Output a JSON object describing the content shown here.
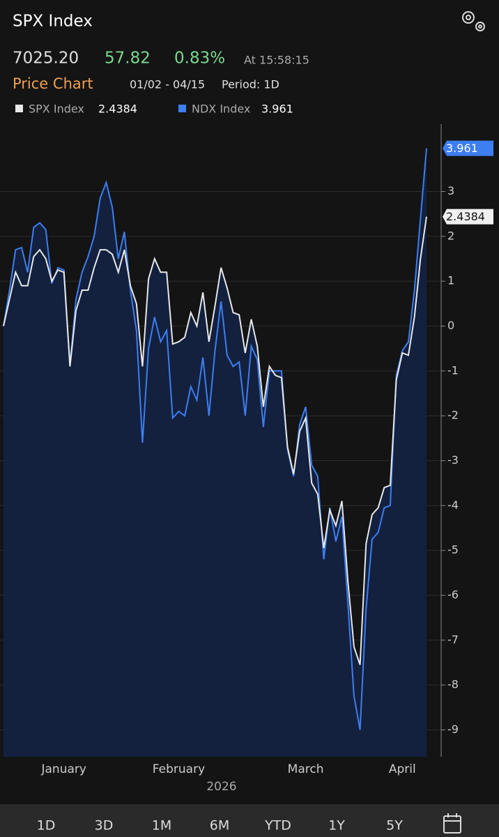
{
  "header": {
    "title": "SPX Index",
    "price": "7025.20",
    "change": "57.82",
    "change_pct": "0.83%",
    "time": "At 15:58:15",
    "section": "Price Chart",
    "range": "01/02 - 04/15",
    "period": "Period: 1D"
  },
  "chart_data": {
    "type": "line",
    "categories": [
      null,
      null,
      null,
      null,
      null,
      null,
      null,
      null,
      null,
      null,
      "January",
      null,
      null,
      null,
      null,
      null,
      null,
      null,
      null,
      null,
      null,
      null,
      null,
      null,
      null,
      null,
      null,
      null,
      null,
      "February",
      null,
      null,
      null,
      null,
      null,
      null,
      null,
      null,
      null,
      null,
      null,
      null,
      null,
      null,
      null,
      null,
      null,
      null,
      null,
      null,
      "March",
      null,
      null,
      null,
      null,
      null,
      null,
      null,
      null,
      null,
      null,
      null,
      null,
      null,
      null,
      null,
      "April",
      null,
      null,
      null,
      null
    ],
    "xlabel": "2026",
    "series": [
      {
        "name": "SPX Index",
        "color": "#e8e8e8",
        "values": [
          0,
          0.6,
          1.2,
          0.9,
          0.9,
          1.55,
          1.7,
          1.5,
          1.0,
          1.25,
          1.2,
          -0.9,
          0.35,
          0.8,
          0.8,
          1.3,
          1.7,
          1.7,
          1.6,
          1.2,
          1.7,
          0.9,
          0.5,
          -0.9,
          1.05,
          1.5,
          1.2,
          1.2,
          -0.4,
          -0.35,
          -0.25,
          0.3,
          0.0,
          0.75,
          -0.35,
          0.45,
          1.3,
          0.85,
          0.3,
          0.25,
          -0.6,
          0.15,
          -0.45,
          -1.8,
          -0.9,
          -1.1,
          -1.15,
          -2.7,
          -3.3,
          -2.35,
          -2.05,
          -3.5,
          -3.75,
          -4.95,
          -4.1,
          -4.45,
          -3.9,
          -5.7,
          -7.15,
          -7.55,
          -4.85,
          -4.2,
          -4.05,
          -3.6,
          -3.55,
          -1.2,
          -0.6,
          -0.65,
          0.2,
          1.5,
          2.4384
        ]
      },
      {
        "name": "NDX Index",
        "color": "#3d7ef0",
        "values": [
          0,
          0.8,
          1.7,
          1.75,
          1.2,
          2.2,
          2.3,
          2.15,
          0.95,
          1.3,
          1.25,
          -0.85,
          0.6,
          1.2,
          1.55,
          2.0,
          2.85,
          3.2,
          2.65,
          1.5,
          2.1,
          0.8,
          -0.1,
          -2.6,
          -0.5,
          0.2,
          -0.35,
          -0.1,
          -2.05,
          -1.9,
          -2.0,
          -1.35,
          -1.65,
          -0.7,
          -2.0,
          -0.55,
          0.55,
          -0.65,
          -0.9,
          -0.8,
          -2.0,
          -0.45,
          -0.75,
          -2.25,
          -1.0,
          -1.0,
          -1.0,
          -2.75,
          -3.35,
          -2.2,
          -1.8,
          -3.1,
          -3.35,
          -5.2,
          -4.05,
          -4.8,
          -4.25,
          -6.2,
          -8.25,
          -9.0,
          -6.3,
          -4.75,
          -4.6,
          -4.05,
          -4.0,
          -1.1,
          -0.55,
          -0.35,
          0.8,
          2.4,
          3.961
        ]
      }
    ],
    "ylim": [
      -9.6,
      4.5
    ],
    "yticks": [
      -9,
      -8,
      -7,
      -6,
      -5,
      -4,
      -3,
      -2,
      -1,
      0,
      1,
      2,
      3
    ],
    "grid": true,
    "fill": "#13213f"
  },
  "periods": [
    "1D",
    "3D",
    "1M",
    "6M",
    "YTD",
    "1Y",
    "5Y"
  ]
}
